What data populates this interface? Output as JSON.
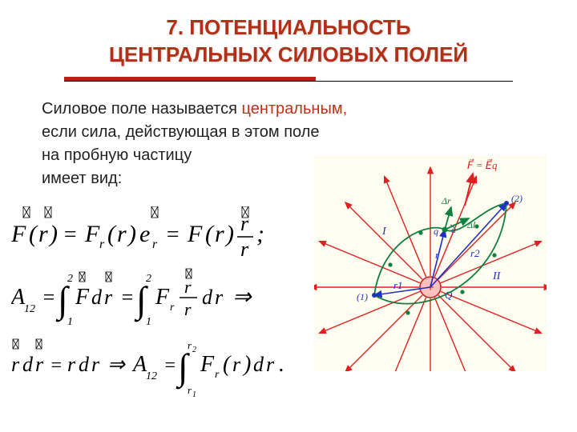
{
  "title": {
    "line1": "7. ПОТЕНЦИАЛЬНОСТЬ",
    "line2": "ЦЕНТРАЛЬНЫХ СИЛОВЫХ ПОЛЕЙ",
    "color": "#b03018",
    "fontsize": 26
  },
  "underline": {
    "thick_color": "#b02418",
    "thin_color": "#000000"
  },
  "body": {
    "prefix": "Силовое поле называется ",
    "highlight": "центральным,",
    "line2": "если сила, действующая в этом поле",
    "line3": "на пробную частицу",
    "line4": "имеет вид:",
    "color": "#222222",
    "highlight_color": "#c03018",
    "fontsize": 20
  },
  "formulas": {
    "color": "#000000",
    "fontsize": 26,
    "eq1": "F(r) = F_r(r) e_r = F(r) r / r ;",
    "eq2": "A_{12} = ∫_1^2 F dr = ∫_1^2 F_r (r/r) dr ⇒",
    "eq3": "r dr = r dr ⇒ A_{12} = ∫_{r1}^{r2} F_r(r) dr ."
  },
  "diagram": {
    "type": "radial-field",
    "background_color": "#fffdf0",
    "center_fill": "#ffc0c0",
    "center_stroke": "#d02020",
    "ray_color": "#e02020",
    "path_color": "#108040",
    "vector_color": "#2030c0",
    "force_label_color": "#d02020",
    "label_color": "#2030c0",
    "center_label": "Q",
    "center_sign": "+",
    "point1_label": "(1)",
    "point2_label": "(2)",
    "path1_label": "I",
    "path2_label": "II",
    "r1_label": "r1",
    "r2_label": "r2",
    "r_label": "r",
    "dr_label": "Δr",
    "dl_label": "Δl",
    "q_label": "q",
    "alpha_label": "α",
    "force_formula": "F = Eq",
    "n_rays": 16
  }
}
